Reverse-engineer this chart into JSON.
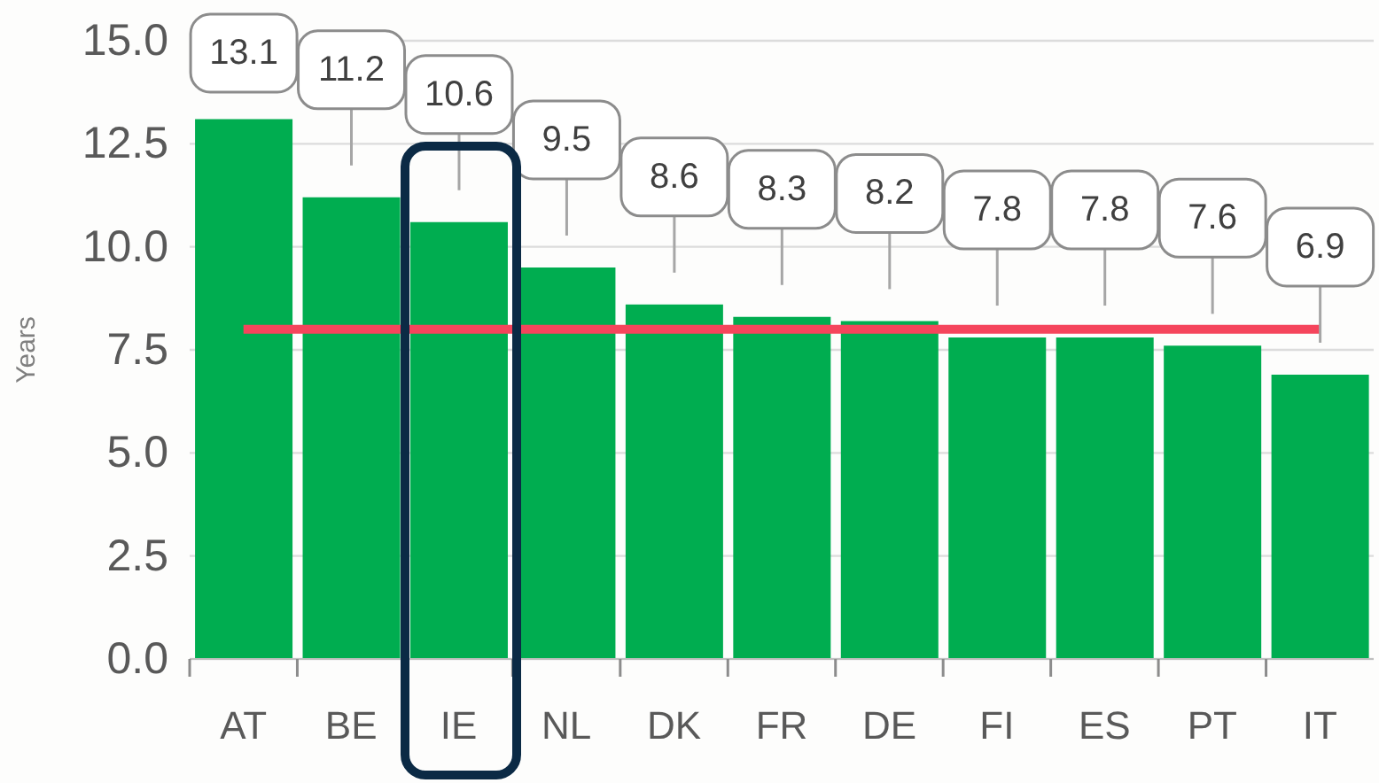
{
  "chart_data": {
    "type": "bar",
    "ylabel": "Years",
    "categories": [
      "AT",
      "BE",
      "IE",
      "NL",
      "DK",
      "FR",
      "DE",
      "FI",
      "ES",
      "PT",
      "IT"
    ],
    "values": [
      13.1,
      11.2,
      10.6,
      9.5,
      8.6,
      8.3,
      8.2,
      7.8,
      7.8,
      7.6,
      6.9
    ],
    "color": "#00ad50",
    "ylim": [
      0,
      15
    ],
    "yticks": [
      {
        "value": 0,
        "label": "0.0"
      },
      2.5,
      {
        "value": 5,
        "label": "5.0"
      },
      7.5,
      {
        "value": 10,
        "label": "10.0"
      },
      12.5,
      {
        "value": 15,
        "label": "15.0"
      }
    ],
    "grid": "y",
    "data_labels": true,
    "ref_lines": [
      {
        "axis": "y",
        "value": 8,
        "color": "#f5455c"
      }
    ]
  }
}
